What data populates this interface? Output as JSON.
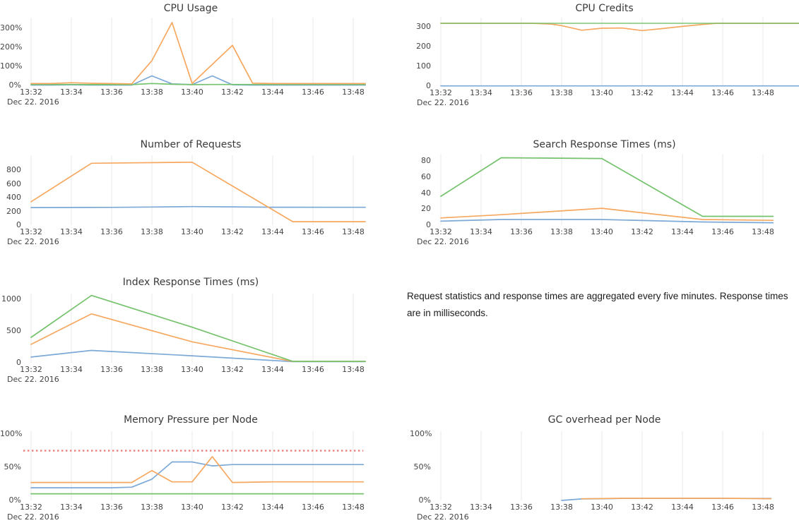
{
  "colors": {
    "blue": "#7ca9d6",
    "orange": "#f6a860",
    "green": "#74c26c",
    "red": "#ee8080",
    "grid": "#e8e8e8",
    "title_text": "#3a3a3a",
    "tick_text": "#444444",
    "annotation_text": "#1c1c1c",
    "background": "#ffffff"
  },
  "x_axis": {
    "tick_labels": [
      "13:32",
      "13:34",
      "13:36",
      "13:38",
      "13:40",
      "13:42",
      "13:44",
      "13:46",
      "13:48"
    ],
    "date_label": "Dec 22. 2016",
    "x_unit": "minutes after 13:00"
  },
  "annotation": {
    "text": "Request statistics and response times are aggregated every five minutes. Response times are in milliseconds."
  },
  "chart_data": [
    {
      "id": "cpu-usage",
      "type": "line",
      "title": "CPU Usage",
      "ylim": [
        0,
        350
      ],
      "y_ticks": [
        {
          "label": "0%",
          "value": 0
        },
        {
          "label": "100%",
          "value": 100
        },
        {
          "label": "200%",
          "value": 200
        },
        {
          "label": "300%",
          "value": 300
        }
      ],
      "series": [
        {
          "name": "series-blue",
          "color": "blue",
          "points": [
            [
              32,
              2
            ],
            [
              33,
              2
            ],
            [
              34,
              3
            ],
            [
              35,
              2
            ],
            [
              36,
              2
            ],
            [
              37,
              2
            ],
            [
              38,
              50
            ],
            [
              39,
              8
            ],
            [
              40,
              4
            ],
            [
              41,
              50
            ],
            [
              42,
              3
            ],
            [
              43,
              2
            ],
            [
              44,
              2
            ],
            [
              46,
              2
            ],
            [
              48.6,
              2
            ]
          ]
        },
        {
          "name": "series-green",
          "color": "green",
          "points": [
            [
              32,
              5
            ],
            [
              33,
              5
            ],
            [
              34,
              5
            ],
            [
              35,
              4
            ],
            [
              36,
              4
            ],
            [
              37,
              4
            ],
            [
              38,
              10
            ],
            [
              39,
              6
            ],
            [
              40,
              4
            ],
            [
              41,
              5
            ],
            [
              48.6,
              5
            ]
          ]
        },
        {
          "name": "series-orange",
          "color": "orange",
          "points": [
            [
              32,
              10
            ],
            [
              33,
              10
            ],
            [
              34,
              14
            ],
            [
              35,
              11
            ],
            [
              36,
              10
            ],
            [
              37,
              8
            ],
            [
              38,
              130
            ],
            [
              39,
              330
            ],
            [
              40,
              10
            ],
            [
              42,
              210
            ],
            [
              43,
              12
            ],
            [
              44,
              10
            ],
            [
              46,
              10
            ],
            [
              48.6,
              10
            ]
          ]
        }
      ]
    },
    {
      "id": "cpu-credits",
      "type": "line",
      "title": "CPU Credits",
      "ylim": [
        0,
        350
      ],
      "y_ticks": [
        {
          "label": "0",
          "value": 0
        },
        {
          "label": "100",
          "value": 100
        },
        {
          "label": "200",
          "value": 200
        },
        {
          "label": "300",
          "value": 300
        }
      ],
      "series": [
        {
          "name": "series-blue",
          "color": "blue",
          "points": [
            [
              32,
              1
            ],
            [
              49.8,
              1
            ]
          ]
        },
        {
          "name": "series-orange",
          "color": "orange",
          "points": [
            [
              32,
              318
            ],
            [
              36.5,
              318
            ],
            [
              37.5,
              314
            ],
            [
              38,
              306
            ],
            [
              39,
              283
            ],
            [
              40,
              293
            ],
            [
              41,
              294
            ],
            [
              42,
              281
            ],
            [
              43,
              291
            ],
            [
              44,
              302
            ],
            [
              45,
              312
            ],
            [
              45.7,
              318
            ],
            [
              49.8,
              318
            ]
          ]
        },
        {
          "name": "series-green",
          "color": "green",
          "opacity": 0.8,
          "points": [
            [
              32,
              318
            ],
            [
              49.8,
              318
            ]
          ]
        }
      ]
    },
    {
      "id": "number-of-requests",
      "type": "line",
      "title": "Number of Requests",
      "ylim": [
        0,
        1000
      ],
      "y_ticks": [
        {
          "label": "0",
          "value": 0
        },
        {
          "label": "200",
          "value": 200
        },
        {
          "label": "400",
          "value": 400
        },
        {
          "label": "600",
          "value": 600
        },
        {
          "label": "800",
          "value": 800
        }
      ],
      "series": [
        {
          "name": "series-blue",
          "color": "blue",
          "points": [
            [
              32,
              255
            ],
            [
              36,
              258
            ],
            [
              38,
              264
            ],
            [
              40,
              270
            ],
            [
              42,
              266
            ],
            [
              44,
              261
            ],
            [
              48.6,
              260
            ]
          ]
        },
        {
          "name": "series-orange",
          "color": "orange",
          "points": [
            [
              32,
              340
            ],
            [
              35,
              900
            ],
            [
              40,
              915
            ],
            [
              45,
              50
            ],
            [
              48.6,
              50
            ]
          ]
        }
      ]
    },
    {
      "id": "search-response-times-ms",
      "type": "line",
      "title": "Search Response Times (ms)",
      "ylim": [
        0,
        88
      ],
      "y_ticks": [
        {
          "label": "0",
          "value": 0
        },
        {
          "label": "20",
          "value": 20
        },
        {
          "label": "40",
          "value": 40
        },
        {
          "label": "60",
          "value": 60
        },
        {
          "label": "80",
          "value": 80
        }
      ],
      "series": [
        {
          "name": "series-blue",
          "color": "blue",
          "points": [
            [
              32,
              5
            ],
            [
              35,
              7
            ],
            [
              40,
              7
            ],
            [
              45,
              4
            ],
            [
              48.5,
              3
            ]
          ]
        },
        {
          "name": "series-orange",
          "color": "orange",
          "points": [
            [
              32,
              9
            ],
            [
              35,
              13
            ],
            [
              40,
              21
            ],
            [
              45,
              7
            ],
            [
              48.5,
              6
            ]
          ]
        },
        {
          "name": "series-green",
          "color": "green",
          "points": [
            [
              32,
              36
            ],
            [
              35,
              84
            ],
            [
              40,
              83
            ],
            [
              45,
              11
            ],
            [
              48.5,
              11
            ]
          ]
        }
      ]
    },
    {
      "id": "index-response-times-ms",
      "type": "line",
      "title": "Index Response Times (ms)",
      "ylim": [
        0,
        1100
      ],
      "y_ticks": [
        {
          "label": "0",
          "value": 0
        },
        {
          "label": "500",
          "value": 500
        },
        {
          "label": "1000",
          "value": 1000
        }
      ],
      "series": [
        {
          "name": "series-blue",
          "color": "blue",
          "points": [
            [
              32,
              90
            ],
            [
              35,
              195
            ],
            [
              40,
              110
            ],
            [
              45,
              18
            ],
            [
              48.6,
              18
            ]
          ]
        },
        {
          "name": "series-orange",
          "color": "orange",
          "points": [
            [
              32,
              290
            ],
            [
              35,
              770
            ],
            [
              40,
              330
            ],
            [
              45,
              20
            ],
            [
              48.6,
              20
            ]
          ]
        },
        {
          "name": "series-green",
          "color": "green",
          "points": [
            [
              32,
              400
            ],
            [
              35,
              1060
            ],
            [
              40,
              560
            ],
            [
              45,
              22
            ],
            [
              48.6,
              22
            ]
          ]
        }
      ]
    },
    {
      "id": "memory-pressure-per-node",
      "type": "line",
      "title": "Memory Pressure per Node",
      "ylim": [
        0,
        105
      ],
      "y_ticks": [
        {
          "label": "0%",
          "value": 0
        },
        {
          "label": "50%",
          "value": 50
        },
        {
          "label": "100%",
          "value": 100
        }
      ],
      "threshold": {
        "value": 75,
        "color": "red",
        "style": "dotted"
      },
      "series": [
        {
          "name": "series-green",
          "color": "green",
          "points": [
            [
              32,
              10
            ],
            [
              48.5,
              10
            ]
          ]
        },
        {
          "name": "series-blue",
          "color": "blue",
          "points": [
            [
              32,
              19
            ],
            [
              36,
              19
            ],
            [
              37,
              20
            ],
            [
              38,
              32
            ],
            [
              39,
              58
            ],
            [
              40,
              58
            ],
            [
              41,
              52
            ],
            [
              42,
              54
            ],
            [
              48.5,
              54
            ]
          ]
        },
        {
          "name": "series-orange",
          "color": "orange",
          "points": [
            [
              32,
              27
            ],
            [
              37,
              27
            ],
            [
              38,
              45
            ],
            [
              39,
              28
            ],
            [
              40,
              28
            ],
            [
              41,
              66
            ],
            [
              42,
              27
            ],
            [
              44,
              28
            ],
            [
              48.5,
              28
            ]
          ]
        }
      ]
    },
    {
      "id": "gc-overhead-per-node",
      "type": "line",
      "title": "GC overhead per Node",
      "ylim": [
        0,
        105
      ],
      "y_ticks": [
        {
          "label": "0%",
          "value": 0
        },
        {
          "label": "50%",
          "value": 50
        },
        {
          "label": "100%",
          "value": 100
        }
      ],
      "series": [
        {
          "name": "series-blue",
          "color": "blue",
          "points": [
            [
              38,
              0
            ],
            [
              39,
              2.2
            ],
            [
              40,
              2.6
            ],
            [
              41,
              3
            ],
            [
              48.4,
              3
            ]
          ]
        },
        {
          "name": "series-orange",
          "color": "orange",
          "points": [
            [
              39,
              2.4
            ],
            [
              40,
              2.8
            ],
            [
              41,
              3.2
            ],
            [
              46,
              3.2
            ],
            [
              48.4,
              2.6
            ]
          ]
        }
      ]
    }
  ]
}
